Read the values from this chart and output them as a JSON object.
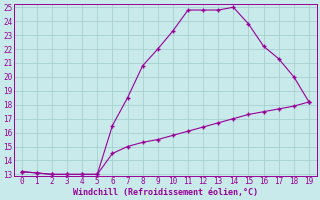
{
  "xlabel": "Windchill (Refroidissement éolien,°C)",
  "x_upper": [
    0,
    1,
    2,
    3,
    4,
    5,
    6,
    7,
    8,
    9,
    10,
    11,
    12,
    13,
    14,
    15,
    16,
    17,
    18,
    19
  ],
  "y_upper": [
    13.2,
    13.1,
    13.0,
    13.0,
    13.0,
    13.0,
    16.5,
    18.5,
    20.8,
    22.0,
    23.3,
    24.8,
    24.8,
    24.8,
    25.0,
    23.8,
    22.2,
    21.3,
    20.0,
    18.2
  ],
  "x_lower": [
    0,
    1,
    2,
    3,
    4,
    5,
    6,
    7,
    8,
    9,
    10,
    11,
    12,
    13,
    14,
    15,
    16,
    17,
    18,
    19
  ],
  "y_lower": [
    13.2,
    13.1,
    13.0,
    13.0,
    13.0,
    13.0,
    14.5,
    15.0,
    15.3,
    15.5,
    15.8,
    16.1,
    16.4,
    16.7,
    17.0,
    17.3,
    17.5,
    17.7,
    17.9,
    18.2
  ],
  "line_color": "#990099",
  "marker": "+",
  "bg_color": "#c8eaea",
  "grid_color": "#a8d0d0",
  "ylim": [
    13,
    25
  ],
  "xlim": [
    -0.5,
    19.5
  ],
  "yticks": [
    13,
    14,
    15,
    16,
    17,
    18,
    19,
    20,
    21,
    22,
    23,
    24,
    25
  ],
  "xticks": [
    0,
    1,
    2,
    3,
    4,
    5,
    6,
    7,
    8,
    9,
    10,
    11,
    12,
    13,
    14,
    15,
    16,
    17,
    18,
    19
  ],
  "tick_fontsize": 5.5,
  "xlabel_fontsize": 6.0
}
